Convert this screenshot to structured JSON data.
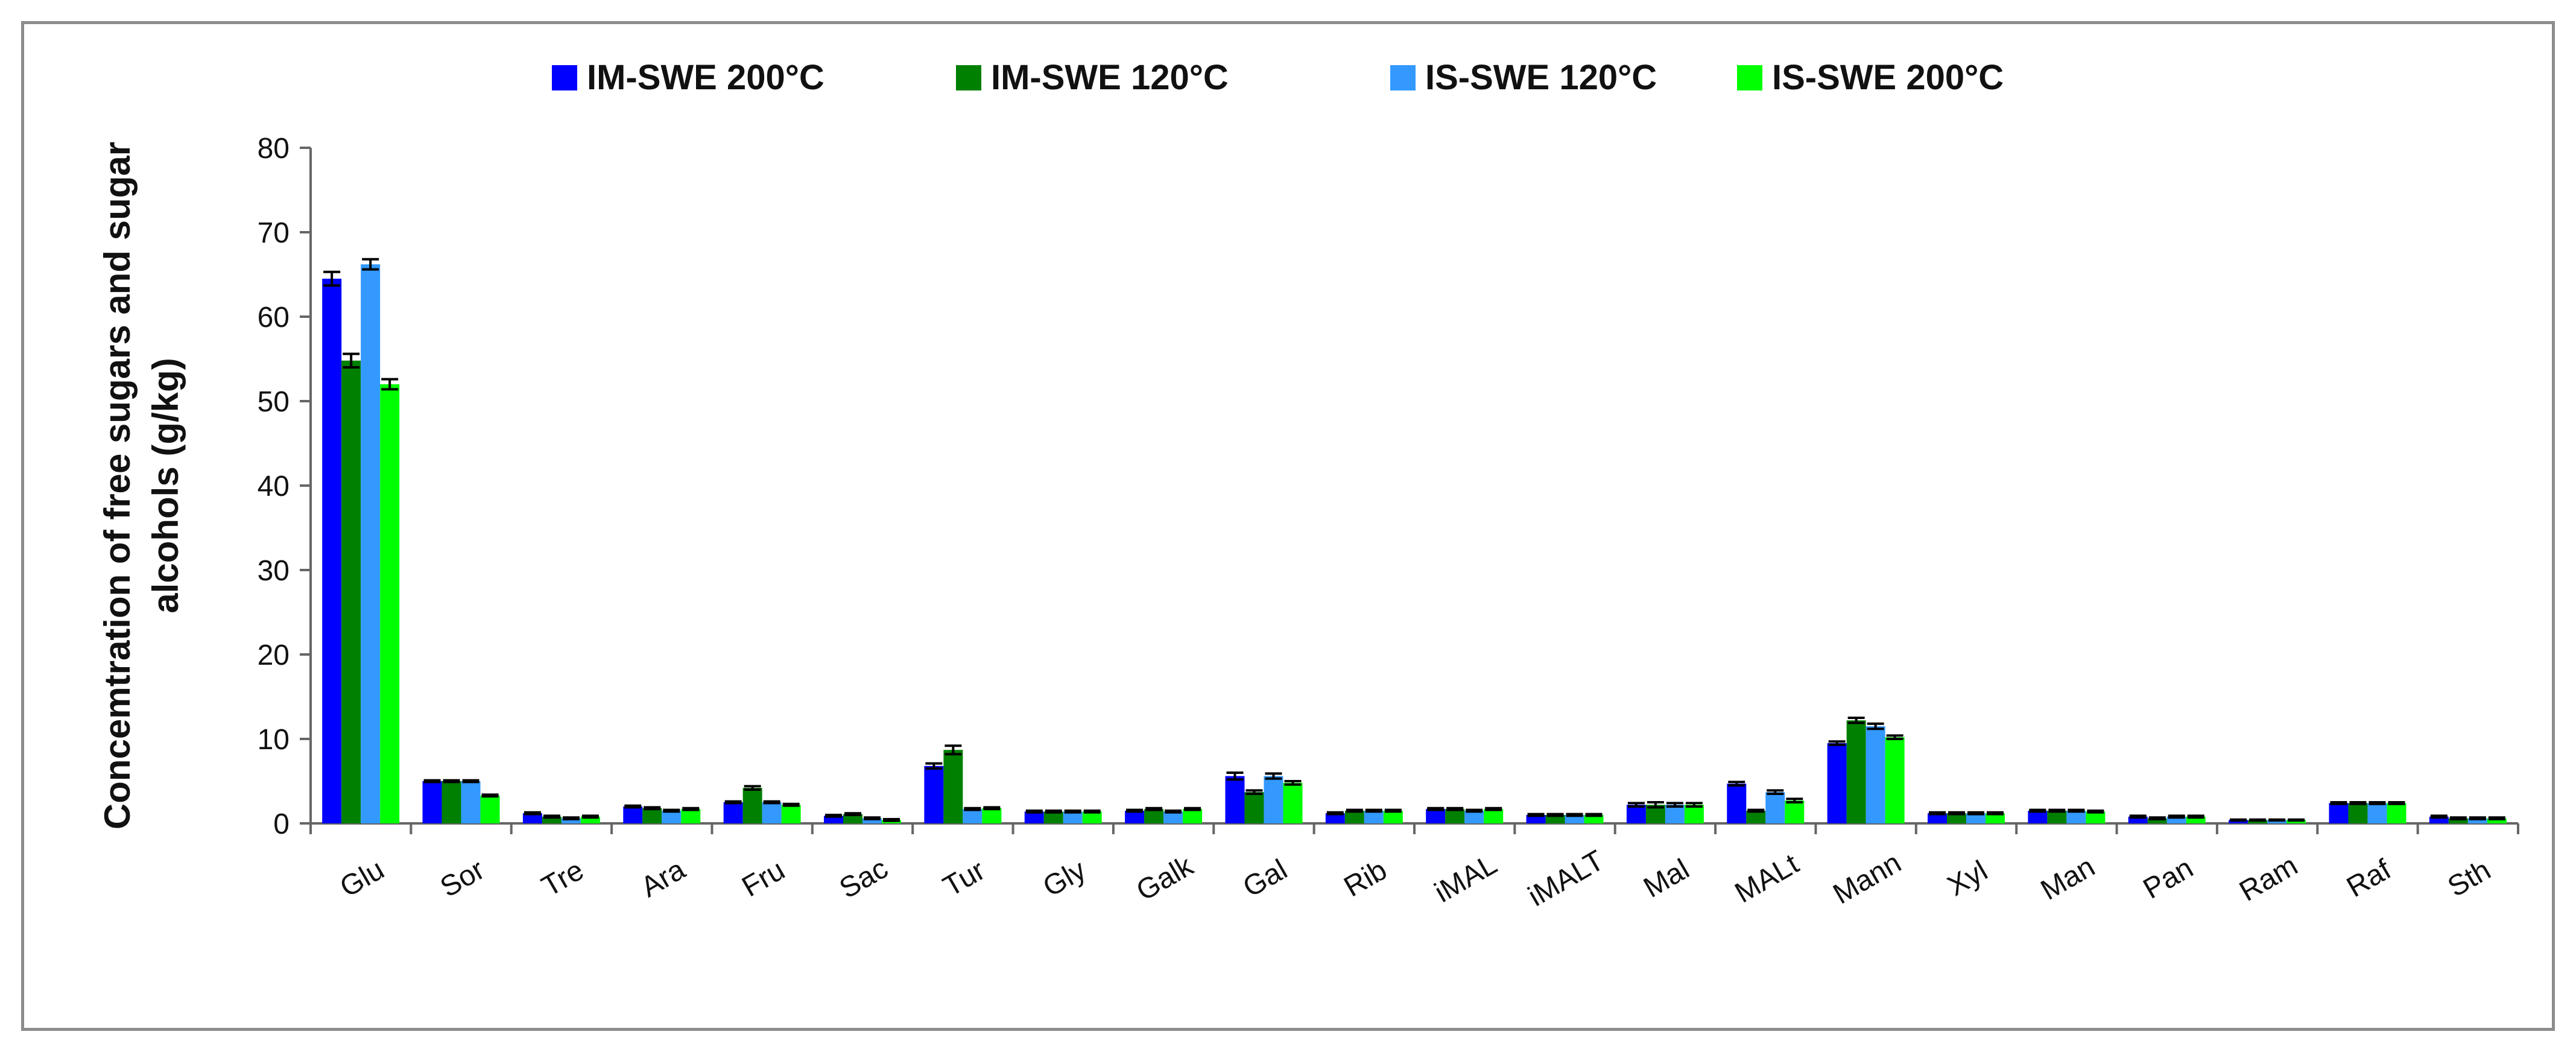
{
  "chart_data": {
    "type": "bar",
    "title": "",
    "xlabel": "",
    "ylabel": "Concemtration of free sugars and sugar alcohols (g/kg)",
    "ylabel_lines": [
      "Concemtration of free sugars and sugar",
      "alcohols (g/kg)"
    ],
    "ylim": [
      0,
      80
    ],
    "yticks": [
      0,
      10,
      20,
      30,
      40,
      50,
      60,
      70,
      80
    ],
    "grid": false,
    "legend_position": "top",
    "categories": [
      "Glu",
      "Sor",
      "Tre",
      "Ara",
      "Fru",
      "Sac",
      "Tur",
      "Gly",
      "Galk",
      "Gal",
      "Rib",
      "iMAL",
      "iMALT",
      "Mal",
      "MALt",
      "Mann",
      "Xyl",
      "Man",
      "Pan",
      "Ram",
      "Raf",
      "Sth"
    ],
    "series": [
      {
        "name": "IM-SWE 200°C",
        "color": "#0000ff",
        "values": [
          64.5,
          5.0,
          1.2,
          2.0,
          2.5,
          0.9,
          6.8,
          1.4,
          1.5,
          5.6,
          1.2,
          1.7,
          1.0,
          2.2,
          4.7,
          9.5,
          1.2,
          1.5,
          0.8,
          0.4,
          2.4,
          0.8
        ],
        "errors": [
          0.8,
          0.1,
          0.1,
          0.1,
          0.1,
          0.1,
          0.3,
          0.1,
          0.1,
          0.4,
          0.1,
          0.1,
          0.1,
          0.2,
          0.2,
          0.2,
          0.1,
          0.1,
          0.1,
          0.05,
          0.1,
          0.1
        ]
      },
      {
        "name": "IM-SWE 120°C",
        "color": "#008000",
        "values": [
          54.8,
          5.0,
          0.8,
          1.8,
          4.2,
          1.1,
          8.7,
          1.4,
          1.7,
          3.7,
          1.5,
          1.7,
          1.0,
          2.2,
          1.5,
          12.2,
          1.2,
          1.5,
          0.6,
          0.4,
          2.4,
          0.6
        ],
        "errors": [
          0.8,
          0.1,
          0.1,
          0.1,
          0.2,
          0.1,
          0.5,
          0.1,
          0.1,
          0.2,
          0.1,
          0.1,
          0.1,
          0.3,
          0.1,
          0.3,
          0.1,
          0.1,
          0.1,
          0.05,
          0.1,
          0.1
        ]
      },
      {
        "name": "IS-SWE 120°C",
        "color": "#3399ff",
        "values": [
          66.2,
          5.0,
          0.6,
          1.5,
          2.5,
          0.6,
          1.7,
          1.4,
          1.4,
          5.6,
          1.5,
          1.5,
          1.0,
          2.2,
          3.7,
          11.5,
          1.2,
          1.5,
          0.8,
          0.4,
          2.4,
          0.6
        ],
        "errors": [
          0.6,
          0.1,
          0.1,
          0.1,
          0.1,
          0.1,
          0.1,
          0.1,
          0.1,
          0.3,
          0.1,
          0.1,
          0.1,
          0.2,
          0.2,
          0.3,
          0.1,
          0.1,
          0.1,
          0.05,
          0.1,
          0.1
        ]
      },
      {
        "name": "IS-SWE 200°C",
        "color": "#00ff00",
        "values": [
          52.0,
          3.3,
          0.8,
          1.7,
          2.2,
          0.4,
          1.8,
          1.4,
          1.7,
          4.8,
          1.5,
          1.7,
          1.0,
          2.2,
          2.7,
          10.2,
          1.2,
          1.4,
          0.8,
          0.4,
          2.4,
          0.6
        ],
        "errors": [
          0.6,
          0.1,
          0.1,
          0.1,
          0.1,
          0.1,
          0.1,
          0.1,
          0.1,
          0.2,
          0.1,
          0.1,
          0.1,
          0.2,
          0.2,
          0.2,
          0.1,
          0.1,
          0.1,
          0.05,
          0.1,
          0.1
        ]
      }
    ]
  }
}
